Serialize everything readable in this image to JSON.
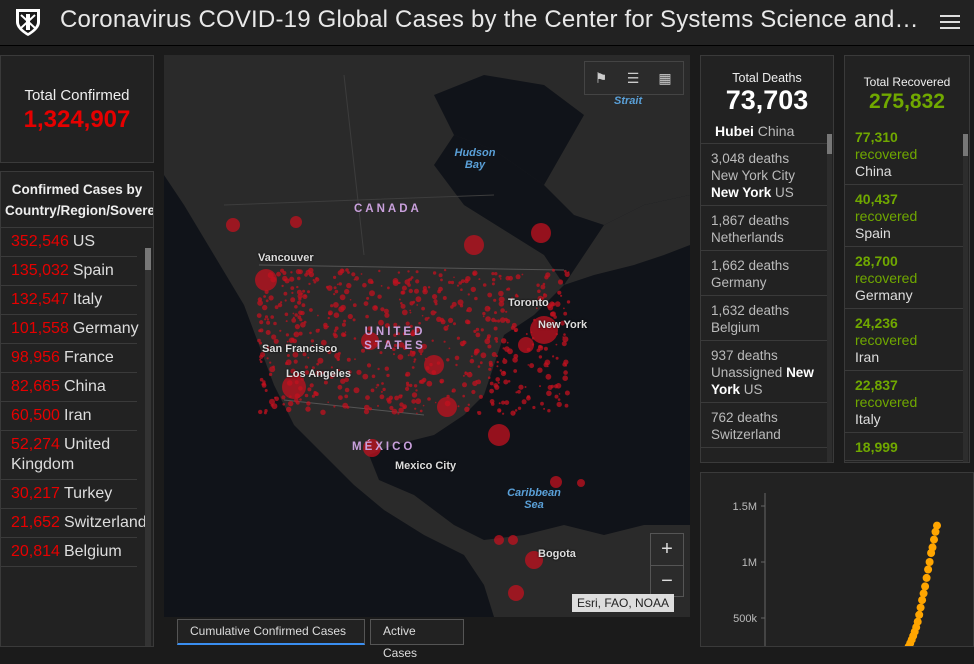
{
  "header": {
    "title": "Coronavirus COVID-19 Global Cases by the Center for Systems Science and…"
  },
  "total_confirmed": {
    "label": "Total Confirmed",
    "value": "1,324,907"
  },
  "country_list": {
    "heading": "Confirmed Cases by Country/Region/Sovereignty",
    "items": [
      {
        "count": "352,546",
        "name": "US"
      },
      {
        "count": "135,032",
        "name": "Spain"
      },
      {
        "count": "132,547",
        "name": "Italy"
      },
      {
        "count": "101,558",
        "name": "Germany"
      },
      {
        "count": "98,956",
        "name": "France"
      },
      {
        "count": "82,665",
        "name": "China"
      },
      {
        "count": "60,500",
        "name": "Iran"
      },
      {
        "count": "52,274",
        "name": "United Kingdom"
      },
      {
        "count": "30,217",
        "name": "Turkey"
      },
      {
        "count": "21,652",
        "name": "Switzerland"
      },
      {
        "count": "20,814",
        "name": "Belgium"
      }
    ]
  },
  "map": {
    "labels": {
      "canada": "CANADA",
      "usa": "UNITED STATES",
      "mexico": "MÉXICO",
      "hudson_bay": "Hudson Bay",
      "strait": "Strait",
      "caribbean": "Caribbean Sea",
      "vancouver": "Vancouver",
      "san_francisco": "San Francisco",
      "los_angeles": "Los Angeles",
      "toronto": "Toronto",
      "new_york": "New York",
      "mexico_city": "Mexico City",
      "bogota": "Bogota"
    },
    "attribution": "Esri, FAO, NOAA",
    "zoom_in": "+",
    "zoom_out": "−"
  },
  "tabs": [
    {
      "label": "Cumulative Confirmed Cases",
      "active": true
    },
    {
      "label": "Active Cases",
      "active": false
    }
  ],
  "deaths": {
    "label": "Total Deaths",
    "value": "73,703",
    "sub": {
      "bold": "Hubei",
      "rest": "China"
    },
    "items": [
      {
        "count": "3,048 deaths",
        "place": "New York City",
        "bold": "New York",
        "rest": "US"
      },
      {
        "count": "1,867 deaths",
        "place": "Netherlands",
        "bold": "",
        "rest": ""
      },
      {
        "count": "1,662 deaths",
        "place": "Germany",
        "bold": "",
        "rest": ""
      },
      {
        "count": "1,632 deaths",
        "place": "Belgium",
        "bold": "",
        "rest": ""
      },
      {
        "count": "937 deaths",
        "place": "Unassigned",
        "bold": "New York",
        "rest": "US"
      },
      {
        "count": "762 deaths",
        "place": "Switzerland",
        "bold": "",
        "rest": ""
      }
    ]
  },
  "recovered": {
    "label": "Total Recovered",
    "value": "275,832",
    "word": "recovered",
    "items": [
      {
        "count": "77,310",
        "country": "China"
      },
      {
        "count": "40,437",
        "country": "Spain"
      },
      {
        "count": "28,700",
        "country": "Germany"
      },
      {
        "count": "24,236",
        "country": "Iran"
      },
      {
        "count": "22,837",
        "country": "Italy"
      },
      {
        "count": "18,999",
        "country": ""
      }
    ]
  },
  "chart_data": {
    "type": "scatter",
    "y_tick_labels": [
      "1.5M",
      "1M",
      "500k"
    ],
    "y_ticks": [
      1500000,
      1000000,
      500000
    ],
    "ylim": [
      0,
      1500000
    ],
    "color": "#ffa500",
    "values": [
      60000,
      62000,
      64000,
      66000,
      69000,
      72000,
      76000,
      80000,
      84000,
      88000,
      93000,
      98000,
      105000,
      113000,
      125000,
      140000,
      156000,
      173000,
      197000,
      218000,
      245000,
      275000,
      306000,
      340000,
      378000,
      418000,
      467000,
      529000,
      593000,
      660000,
      720000,
      782000,
      858000,
      933000,
      1000000,
      1080000,
      1130000,
      1200000,
      1270000,
      1324907
    ]
  }
}
